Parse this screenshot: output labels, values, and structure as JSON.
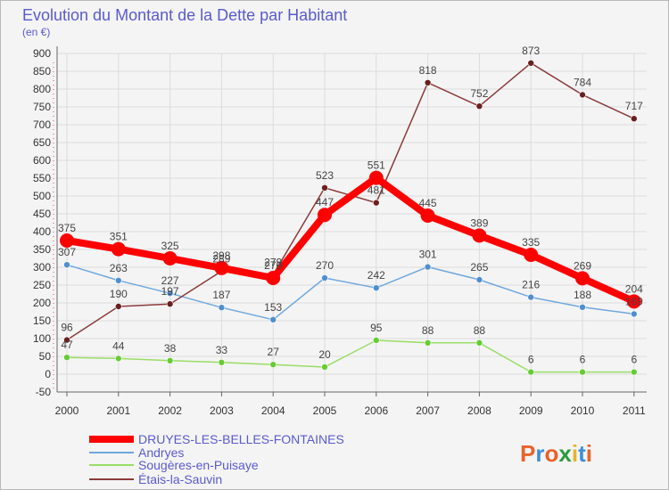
{
  "title": "Evolution du Montant de la Dette par Habitant",
  "subtitle": "(en €)",
  "logo": "Proxiti",
  "chart_data": {
    "type": "line",
    "x": [
      "2000",
      "2001",
      "2002",
      "2003",
      "2004",
      "2005",
      "2006",
      "2007",
      "2008",
      "2009",
      "2010",
      "2011"
    ],
    "ylim": [
      -50,
      900
    ],
    "yticks": [
      -50,
      0,
      50,
      100,
      150,
      200,
      250,
      300,
      350,
      400,
      450,
      500,
      550,
      600,
      650,
      700,
      750,
      800,
      850,
      900
    ],
    "grid": true,
    "legend_position": "bottom-left",
    "series": [
      {
        "name": "DRUYES-LES-BELLES-FONTAINES",
        "color": "#ff0000",
        "point_color": "#ff0000",
        "width": 8,
        "marker": 8,
        "values": [
          375,
          351,
          325,
          298,
          270,
          447,
          551,
          445,
          389,
          335,
          269,
          204
        ],
        "labels": [
          "375",
          "351",
          "325",
          "298",
          "270",
          "447",
          "551",
          "445",
          "389",
          "335",
          "269",
          "204"
        ]
      },
      {
        "name": "Andryes",
        "color": "#6fa8dc",
        "point_color": "#4f8fcf",
        "width": 1.5,
        "marker": 3.5,
        "values": [
          307,
          263,
          227,
          187,
          153,
          270,
          242,
          301,
          265,
          216,
          188,
          169
        ],
        "labels": [
          "307",
          "263",
          "227",
          "187",
          "153",
          "270",
          "242",
          "301",
          "265",
          "216",
          "188",
          "169"
        ]
      },
      {
        "name": "Sougères-en-Puisaye",
        "color": "#99dd66",
        "point_color": "#66cc33",
        "width": 1.5,
        "marker": 3.5,
        "values": [
          47,
          44,
          38,
          33,
          27,
          20,
          95,
          88,
          88,
          6,
          6,
          6
        ],
        "labels": [
          "47",
          "44",
          "38",
          "33",
          "27",
          "20",
          "95",
          "88",
          "88",
          "6",
          "6",
          "6"
        ]
      },
      {
        "name": "Étais-la-Sauvin",
        "color": "#8b3a3a",
        "point_color": "#6b1f1f",
        "width": 1.5,
        "marker": 3.5,
        "values": [
          96,
          190,
          197,
          289,
          279,
          523,
          481,
          818,
          752,
          873,
          784,
          717
        ],
        "labels": [
          "96",
          "190",
          "197",
          "289",
          "279",
          "523",
          "481",
          "818",
          "752",
          "873",
          "784",
          "717"
        ]
      }
    ]
  }
}
